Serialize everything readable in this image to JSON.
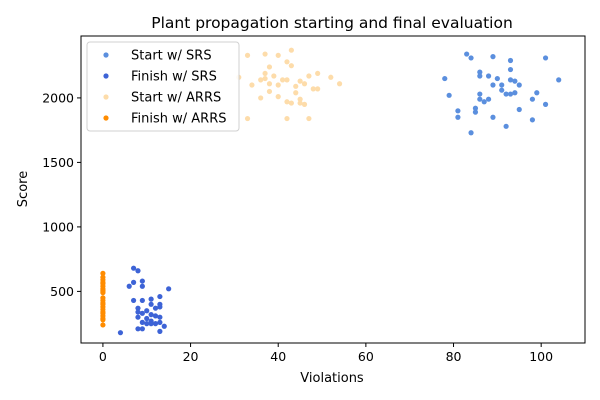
{
  "chart_data": {
    "type": "scatter",
    "title": "Plant propagation starting and final evaluation",
    "xlabel": "Violations",
    "ylabel": "Score",
    "xlim": [
      -5,
      110
    ],
    "ylim": [
      100,
      2480
    ],
    "xticks": [
      0,
      20,
      40,
      60,
      80,
      100
    ],
    "yticks": [
      500,
      1000,
      1500,
      2000
    ],
    "grid": false,
    "legend_position": "top-left",
    "series": [
      {
        "name": "Start w/ SRS",
        "color": "#5b8fde",
        "points": [
          [
            83,
            2340
          ],
          [
            84,
            2310
          ],
          [
            89,
            2320
          ],
          [
            93,
            2290
          ],
          [
            101,
            2310
          ],
          [
            86,
            2200
          ],
          [
            88,
            2170
          ],
          [
            93,
            2220
          ],
          [
            78,
            2150
          ],
          [
            86,
            2170
          ],
          [
            90,
            2150
          ],
          [
            93,
            2140
          ],
          [
            94,
            2130
          ],
          [
            104,
            2140
          ],
          [
            89,
            2100
          ],
          [
            91,
            2100
          ],
          [
            95,
            2100
          ],
          [
            79,
            2020
          ],
          [
            86,
            2030
          ],
          [
            92,
            2030
          ],
          [
            93,
            2030
          ],
          [
            94,
            2040
          ],
          [
            99,
            2040
          ],
          [
            86,
            1990
          ],
          [
            87,
            1970
          ],
          [
            88,
            1990
          ],
          [
            98,
            1990
          ],
          [
            101,
            1950
          ],
          [
            81,
            1900
          ],
          [
            85,
            1920
          ],
          [
            95,
            1910
          ],
          [
            81,
            1850
          ],
          [
            85,
            1890
          ],
          [
            89,
            1850
          ],
          [
            98,
            1830
          ],
          [
            92,
            1780
          ],
          [
            84,
            1730
          ],
          [
            91,
            2060
          ]
        ]
      },
      {
        "name": "Finish w/ SRS",
        "color": "#3d63d6",
        "points": [
          [
            7,
            680
          ],
          [
            8,
            660
          ],
          [
            7,
            570
          ],
          [
            9,
            580
          ],
          [
            6,
            540
          ],
          [
            9,
            540
          ],
          [
            15,
            520
          ],
          [
            7,
            430
          ],
          [
            9,
            430
          ],
          [
            11,
            440
          ],
          [
            13,
            460
          ],
          [
            11,
            400
          ],
          [
            13,
            400
          ],
          [
            8,
            370
          ],
          [
            10,
            350
          ],
          [
            12,
            370
          ],
          [
            13,
            380
          ],
          [
            8,
            340
          ],
          [
            9,
            330
          ],
          [
            11,
            320
          ],
          [
            12,
            310
          ],
          [
            8,
            300
          ],
          [
            10,
            290
          ],
          [
            11,
            270
          ],
          [
            13,
            300
          ],
          [
            9,
            260
          ],
          [
            10,
            250
          ],
          [
            12,
            250
          ],
          [
            13,
            260
          ],
          [
            8,
            210
          ],
          [
            9,
            210
          ],
          [
            11,
            250
          ],
          [
            14,
            230
          ],
          [
            4,
            180
          ],
          [
            13,
            190
          ]
        ]
      },
      {
        "name": "Start w/ ARRS",
        "color": "#fddcaa",
        "points": [
          [
            43,
            2370
          ],
          [
            33,
            2330
          ],
          [
            37,
            2340
          ],
          [
            40,
            2330
          ],
          [
            42,
            2280
          ],
          [
            38,
            2240
          ],
          [
            43,
            2250
          ],
          [
            37,
            2190
          ],
          [
            39,
            2170
          ],
          [
            47,
            2170
          ],
          [
            49,
            2190
          ],
          [
            52,
            2160
          ],
          [
            31,
            2160
          ],
          [
            36,
            2140
          ],
          [
            37,
            2150
          ],
          [
            41,
            2140
          ],
          [
            42,
            2140
          ],
          [
            34,
            2100
          ],
          [
            38,
            2110
          ],
          [
            40,
            2100
          ],
          [
            45,
            2130
          ],
          [
            46,
            2110
          ],
          [
            54,
            2110
          ],
          [
            44,
            2090
          ],
          [
            48,
            2070
          ],
          [
            49,
            2070
          ],
          [
            36,
            2000
          ],
          [
            40,
            2010
          ],
          [
            44,
            2040
          ],
          [
            42,
            1970
          ],
          [
            43,
            1960
          ],
          [
            45,
            1990
          ],
          [
            46,
            1950
          ],
          [
            33,
            1840
          ],
          [
            42,
            1840
          ],
          [
            47,
            1840
          ],
          [
            38,
            2050
          ],
          [
            45,
            1960
          ]
        ]
      },
      {
        "name": "Finish w/ ARRS",
        "color": "#ff8c00",
        "points": [
          [
            0,
            640
          ],
          [
            0,
            610
          ],
          [
            0,
            590
          ],
          [
            0,
            570
          ],
          [
            0,
            560
          ],
          [
            0,
            540
          ],
          [
            0,
            520
          ],
          [
            0,
            510
          ],
          [
            0,
            500
          ],
          [
            0,
            490
          ],
          [
            0,
            450
          ],
          [
            0,
            430
          ],
          [
            0,
            410
          ],
          [
            0,
            400
          ],
          [
            0,
            380
          ],
          [
            0,
            360
          ],
          [
            0,
            340
          ],
          [
            0,
            330
          ],
          [
            0,
            310
          ],
          [
            0,
            290
          ],
          [
            0,
            280
          ],
          [
            0,
            240
          ]
        ]
      }
    ]
  }
}
